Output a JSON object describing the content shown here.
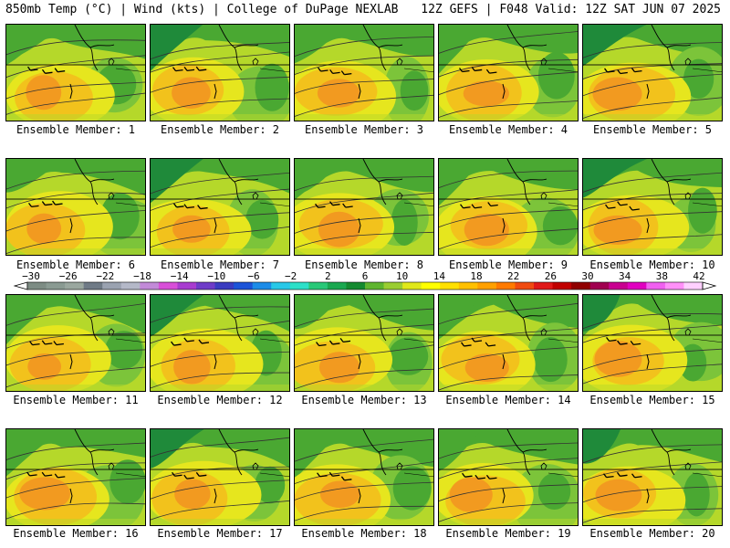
{
  "header": {
    "left": "850mb Temp (°C) | Wind (kts) | College of DuPage NEXLAB",
    "right": "12Z GEFS | F048 Valid: 12Z SAT JUN 07 2025"
  },
  "caption_prefix": "Ensemble Member: ",
  "members": [
    1,
    2,
    3,
    4,
    5,
    6,
    7,
    8,
    9,
    10,
    11,
    12,
    13,
    14,
    15,
    16,
    17,
    18,
    19,
    20
  ],
  "colorbar": {
    "labels": [
      "−30",
      "−26",
      "−22",
      "−18",
      "−14",
      "−10",
      "−6",
      "−2",
      "2",
      "6",
      "10",
      "14",
      "18",
      "22",
      "26",
      "30",
      "34",
      "38",
      "42"
    ],
    "colors": [
      "#7d8c84",
      "#8a9a92",
      "#9aa79f",
      "#6f7a86",
      "#9aa2b0",
      "#b4b8c8",
      "#c28ad8",
      "#d84fd8",
      "#a83cd0",
      "#6e3cc8",
      "#3a3cc0",
      "#1c54d8",
      "#1c8ce8",
      "#28c8e8",
      "#2ce0c8",
      "#28c878",
      "#1aa850",
      "#148a30",
      "#5fb52f",
      "#9acd32",
      "#e0e81a",
      "#ffff00",
      "#ffe000",
      "#ffc000",
      "#ffa000",
      "#ff7a00",
      "#f04a10",
      "#e01818",
      "#c00000",
      "#900000",
      "#a00050",
      "#c80090",
      "#e000c0",
      "#f060f0",
      "#ff90f8",
      "#ffd0ff"
    ]
  },
  "map_colors": {
    "green_dark": "#1f8a3a",
    "green": "#4aa832",
    "green_light": "#7cc43a",
    "yellowgreen": "#b5d82a",
    "yellow": "#e6e61e",
    "orange_light": "#f2c21c",
    "orange": "#f29a20",
    "teal": "#28b878"
  }
}
